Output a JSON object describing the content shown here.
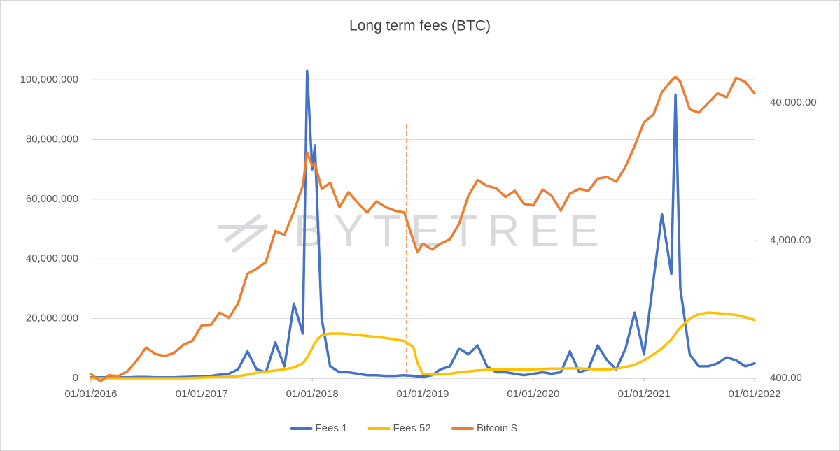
{
  "chart_data": {
    "type": "line",
    "title": "Long term fees (BTC)",
    "watermark": "BYTETREE",
    "x": [
      "01/01/2016",
      "01/02/2016",
      "01/03/2016",
      "01/04/2016",
      "01/05/2016",
      "01/06/2016",
      "01/07/2016",
      "01/08/2016",
      "01/09/2016",
      "01/10/2016",
      "01/11/2016",
      "01/12/2016",
      "01/01/2017",
      "01/02/2017",
      "01/03/2017",
      "01/04/2017",
      "01/05/2017",
      "01/06/2017",
      "01/07/2017",
      "01/08/2017",
      "01/09/2017",
      "01/10/2017",
      "01/11/2017",
      "01/12/2017",
      "15/12/2017",
      "01/01/2018",
      "10/01/2018",
      "01/02/2018",
      "01/03/2018",
      "01/04/2018",
      "01/05/2018",
      "01/06/2018",
      "01/07/2018",
      "01/08/2018",
      "01/09/2018",
      "01/10/2018",
      "01/11/2018",
      "01/12/2018",
      "15/12/2018",
      "01/01/2019",
      "01/02/2019",
      "01/03/2019",
      "01/04/2019",
      "01/05/2019",
      "01/06/2019",
      "01/07/2019",
      "01/08/2019",
      "01/09/2019",
      "01/10/2019",
      "01/11/2019",
      "01/12/2019",
      "01/01/2020",
      "01/02/2020",
      "01/03/2020",
      "01/04/2020",
      "01/05/2020",
      "01/06/2020",
      "01/07/2020",
      "01/08/2020",
      "01/09/2020",
      "01/10/2020",
      "01/11/2020",
      "01/12/2020",
      "01/01/2021",
      "01/02/2021",
      "01/03/2021",
      "01/04/2021",
      "15/04/2021",
      "01/05/2021",
      "01/06/2021",
      "01/07/2021",
      "01/08/2021",
      "01/09/2021",
      "01/10/2021",
      "01/11/2021",
      "01/12/2021",
      "01/01/2022"
    ],
    "series": [
      {
        "name": "Fees 1",
        "color": "#4472c4",
        "values": [
          300000,
          300000,
          300000,
          300000,
          300000,
          400000,
          400000,
          300000,
          300000,
          300000,
          400000,
          500000,
          600000,
          800000,
          1200000,
          1500000,
          3000000,
          9000000,
          3000000,
          2000000,
          12000000,
          4000000,
          25000000,
          15000000,
          103000000,
          70000000,
          78000000,
          20000000,
          4000000,
          2000000,
          2000000,
          1500000,
          1000000,
          1000000,
          800000,
          800000,
          1000000,
          800000,
          600000,
          500000,
          1000000,
          3000000,
          4000000,
          10000000,
          8000000,
          11000000,
          4000000,
          2000000,
          2000000,
          1500000,
          1000000,
          1500000,
          2000000,
          1500000,
          2000000,
          9000000,
          2000000,
          3000000,
          11000000,
          6000000,
          3000000,
          10000000,
          22000000,
          8000000,
          33000000,
          55000000,
          35000000,
          95000000,
          30000000,
          8000000,
          4000000,
          4000000,
          5000000,
          7000000,
          6000000,
          4000000,
          5000000
        ]
      },
      {
        "name": "Fees 52",
        "color": "#ffc000",
        "values": [
          0,
          0,
          0,
          0,
          0,
          0,
          0,
          0,
          0,
          0,
          0,
          100000,
          200000,
          300000,
          400000,
          500000,
          700000,
          1200000,
          1800000,
          2200000,
          2600000,
          3000000,
          3600000,
          5000000,
          7000000,
          10000000,
          12000000,
          14500000,
          15000000,
          15000000,
          14800000,
          14500000,
          14200000,
          13800000,
          13500000,
          13000000,
          12500000,
          10500000,
          5000000,
          1500000,
          1200000,
          1300000,
          1500000,
          2000000,
          2300000,
          2600000,
          2800000,
          3000000,
          3000000,
          3000000,
          3000000,
          3000000,
          3100000,
          3200000,
          3200000,
          3300000,
          3300000,
          3100000,
          3000000,
          3000000,
          3200000,
          3800000,
          4500000,
          6000000,
          8000000,
          10000000,
          13000000,
          15000000,
          17000000,
          20000000,
          21500000,
          22000000,
          21800000,
          21500000,
          21200000,
          20500000,
          19500000
        ]
      },
      {
        "name": "Bitcoin $",
        "color": "#ed7d31",
        "axis": "y2",
        "values": [
          430,
          380,
          420,
          415,
          450,
          540,
          670,
          600,
          580,
          610,
          700,
          750,
          970,
          980,
          1200,
          1100,
          1400,
          2300,
          2500,
          2800,
          4700,
          4400,
          6500,
          10000,
          17500,
          14000,
          14500,
          9500,
          10500,
          7000,
          9000,
          7500,
          6400,
          7700,
          7000,
          6600,
          6400,
          4000,
          3300,
          3800,
          3450,
          3800,
          4100,
          5300,
          8500,
          11000,
          10000,
          9600,
          8300,
          9200,
          7400,
          7200,
          9400,
          8500,
          6600,
          8800,
          9500,
          9200,
          11300,
          11600,
          10700,
          13800,
          19500,
          29000,
          33000,
          48000,
          58000,
          62000,
          57000,
          36000,
          34000,
          40000,
          47000,
          44000,
          61000,
          57000,
          47000
        ]
      }
    ],
    "xlim": [
      "01/01/2016",
      "01/01/2022"
    ],
    "xticks": [
      "01/01/2016",
      "01/01/2017",
      "01/01/2018",
      "01/01/2019",
      "01/01/2020",
      "01/01/2021",
      "01/01/2022"
    ],
    "ylim": [
      0,
      104000000
    ],
    "yticks": [
      0,
      {
        "value": 20000000,
        "label": "20,000,000"
      },
      {
        "value": 40000000,
        "label": "40,000,000"
      },
      {
        "value": 60000000,
        "label": "60,000,000"
      },
      {
        "value": 80000000,
        "label": "80,000,000"
      },
      {
        "value": 100000000,
        "label": "100,000,000"
      }
    ],
    "y2lim": [
      400,
      72000
    ],
    "y2log": true,
    "y2ticks": [
      {
        "value": 400,
        "label": "400.00"
      },
      {
        "value": 4000,
        "label": "4,000.00"
      },
      {
        "value": 40000,
        "label": "40,000.00"
      }
    ],
    "grid": true,
    "legend": "bottom"
  }
}
